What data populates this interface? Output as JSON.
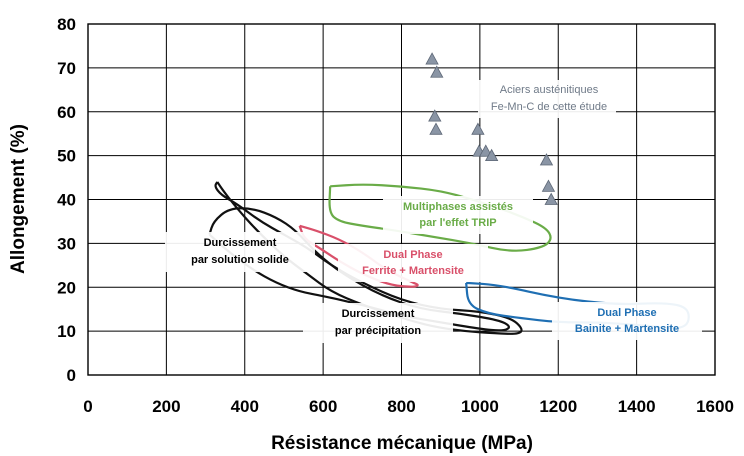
{
  "chart_data": {
    "type": "scatter",
    "xlabel": "Résistance mécanique (MPa)",
    "ylabel": "Allongement (%)",
    "xlim": [
      0,
      1600
    ],
    "ylim": [
      0,
      80
    ],
    "x_ticks": [
      "0",
      "200",
      "400",
      "600",
      "800",
      "1000",
      "1200",
      "1400",
      "1600"
    ],
    "y_ticks": [
      "0",
      "10",
      "20",
      "30",
      "40",
      "50",
      "60",
      "70",
      "80"
    ],
    "grid": true,
    "series": [
      {
        "name": "Aciers austénitiques Fe-Mn-C de cette étude",
        "marker": "triangle",
        "color": "#8a95a5",
        "points": [
          {
            "x": 878,
            "y": 72
          },
          {
            "x": 890,
            "y": 69
          },
          {
            "x": 885,
            "y": 59
          },
          {
            "x": 888,
            "y": 56
          },
          {
            "x": 995,
            "y": 56
          },
          {
            "x": 998,
            "y": 51
          },
          {
            "x": 1015,
            "y": 51
          },
          {
            "x": 1030,
            "y": 50
          },
          {
            "x": 1170,
            "y": 49
          },
          {
            "x": 1175,
            "y": 43
          },
          {
            "x": 1182,
            "y": 40
          }
        ]
      }
    ],
    "regions": [
      {
        "label_lines": [
          "Durcissement",
          "par solution solide"
        ],
        "color": "#111111",
        "outline": [
          [
            330,
            44
          ],
          [
            345,
            42
          ],
          [
            380,
            38
          ],
          [
            430,
            33
          ],
          [
            500,
            27
          ],
          [
            560,
            23
          ],
          [
            620,
            19
          ],
          [
            700,
            16
          ],
          [
            800,
            13
          ],
          [
            880,
            11
          ],
          [
            960,
            10
          ],
          [
            1040,
            9.5
          ],
          [
            1100,
            9.3
          ],
          [
            1110,
            10.5
          ],
          [
            1080,
            13
          ],
          [
            1000,
            14.5
          ],
          [
            900,
            15
          ],
          [
            800,
            17
          ],
          [
            700,
            21
          ],
          [
            620,
            25
          ],
          [
            560,
            29
          ],
          [
            500,
            32
          ],
          [
            440,
            35
          ],
          [
            380,
            39
          ],
          [
            340,
            41
          ],
          [
            323,
            43
          ],
          [
            330,
            44
          ]
        ]
      },
      {
        "label_lines": [
          "Durcissement",
          "par précipitation"
        ],
        "color": "#111111",
        "outline": [
          [
            310,
            32
          ],
          [
            360,
            28
          ],
          [
            420,
            24
          ],
          [
            480,
            21
          ],
          [
            540,
            19
          ],
          [
            600,
            18
          ],
          [
            700,
            16
          ],
          [
            800,
            13.5
          ],
          [
            900,
            12
          ],
          [
            1000,
            10.5
          ],
          [
            1060,
            10
          ],
          [
            1080,
            11
          ],
          [
            1050,
            12.5
          ],
          [
            950,
            14
          ],
          [
            850,
            15
          ],
          [
            750,
            18
          ],
          [
            650,
            23
          ],
          [
            580,
            28
          ],
          [
            530,
            33
          ],
          [
            480,
            36
          ],
          [
            420,
            38
          ],
          [
            360,
            38
          ],
          [
            320,
            35
          ],
          [
            310,
            32
          ]
        ]
      },
      {
        "label_lines": [
          "Dual Phase",
          "Ferrite + Martensite"
        ],
        "color": "#d9506a",
        "outline": [
          [
            540,
            34
          ],
          [
            580,
            33
          ],
          [
            640,
            31
          ],
          [
            700,
            28
          ],
          [
            760,
            24
          ],
          [
            830,
            21
          ],
          [
            845,
            20.5
          ],
          [
            830,
            20
          ],
          [
            770,
            20.5
          ],
          [
            700,
            23
          ],
          [
            640,
            26
          ],
          [
            590,
            29
          ],
          [
            552,
            31
          ],
          [
            540,
            34
          ]
        ]
      },
      {
        "label_lines": [
          "Multiphases assistés",
          "par l'effet TRIP"
        ],
        "color": "#6aac48",
        "outline": [
          [
            618,
            43
          ],
          [
            700,
            43.5
          ],
          [
            800,
            43
          ],
          [
            900,
            42
          ],
          [
            980,
            40
          ],
          [
            1050,
            38
          ],
          [
            1110,
            36
          ],
          [
            1170,
            33.5
          ],
          [
            1185,
            31
          ],
          [
            1160,
            29
          ],
          [
            1080,
            28
          ],
          [
            980,
            30
          ],
          [
            880,
            31.5
          ],
          [
            780,
            33
          ],
          [
            700,
            34
          ],
          [
            640,
            35
          ],
          [
            615,
            37
          ],
          [
            618,
            43
          ]
        ]
      },
      {
        "label_lines": [
          "Dual Phase",
          "Bainite + Martensite"
        ],
        "color": "#1f6fb3",
        "outline": [
          [
            965,
            21
          ],
          [
            1050,
            20.5
          ],
          [
            1200,
            17.5
          ],
          [
            1350,
            16
          ],
          [
            1470,
            16.5
          ],
          [
            1530,
            15.5
          ],
          [
            1535,
            12
          ],
          [
            1510,
            10.5
          ],
          [
            1450,
            11
          ],
          [
            1390,
            11.5
          ],
          [
            1300,
            12
          ],
          [
            1200,
            12
          ],
          [
            1100,
            13
          ],
          [
            1020,
            14
          ],
          [
            970,
            16
          ],
          [
            965,
            21
          ]
        ]
      }
    ]
  }
}
